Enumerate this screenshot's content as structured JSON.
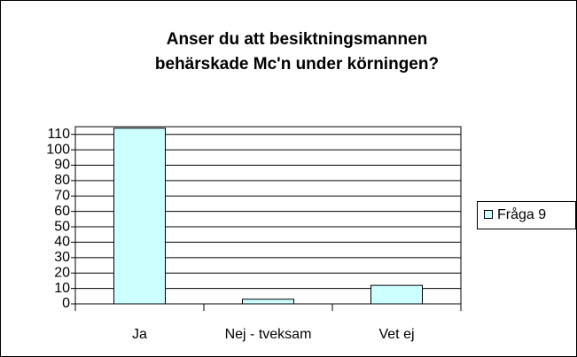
{
  "chart_data": {
    "type": "bar",
    "title": [
      "Anser du att besiktningsmannen",
      "behärskade Mc'n under körningen?"
    ],
    "categories": [
      "Ja",
      "Nej - tveksam",
      "Vet ej"
    ],
    "series": [
      {
        "name": "Fråga 9",
        "color": "#ccffff",
        "values": [
          114,
          3,
          12
        ]
      }
    ],
    "ylim": [
      0,
      115
    ],
    "yticks": [
      0,
      10,
      20,
      30,
      40,
      50,
      60,
      70,
      80,
      90,
      100,
      110
    ],
    "grid": true,
    "legend": "right"
  }
}
